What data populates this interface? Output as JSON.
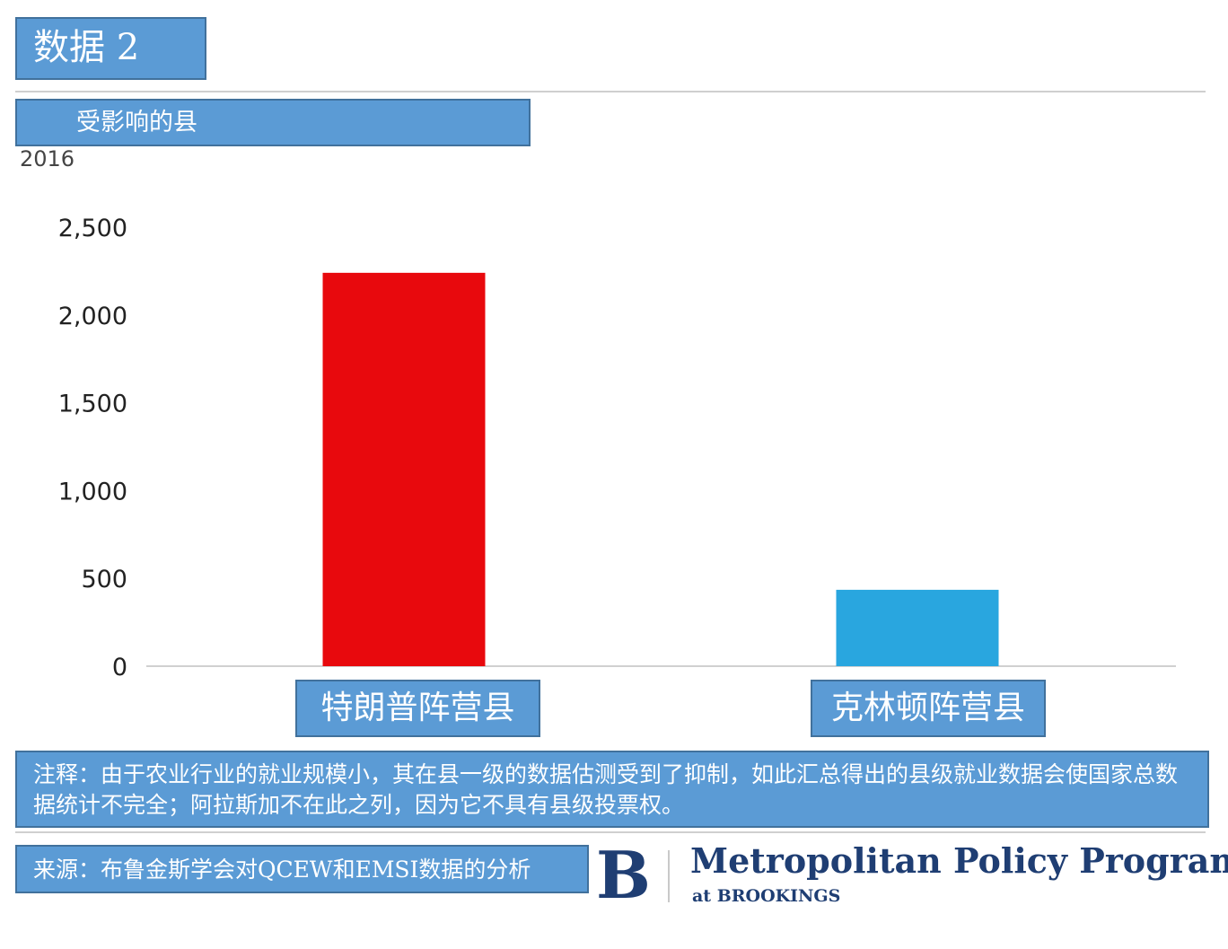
{
  "header": {
    "title": "数据 2",
    "subtitle": "受影响的县",
    "year": "2016"
  },
  "chart_data": {
    "type": "bar",
    "categories": [
      "特朗普阵营县",
      "克林顿阵营县"
    ],
    "values": [
      2240,
      435
    ],
    "colors": [
      "#e8090d",
      "#29a6df"
    ],
    "ylim": [
      0,
      2500
    ],
    "yticks": [
      "0",
      "500",
      "1,000",
      "1,500",
      "2,000",
      "2,500"
    ],
    "grid": false
  },
  "footer": {
    "note": "注释：由于农业行业的就业规模小，其在县一级的数据估测受到了抑制，如此汇总得出的县级就业数据会使国家总数据统计不完全；阿拉斯加不在此之列，因为它不具有县级投票权。",
    "source": "来源：布鲁金斯学会对QCEW和EMSI数据的分析"
  },
  "brand": {
    "letter": "B",
    "name": "Metropolitan Policy Program",
    "sub": "at BROOKINGS"
  }
}
